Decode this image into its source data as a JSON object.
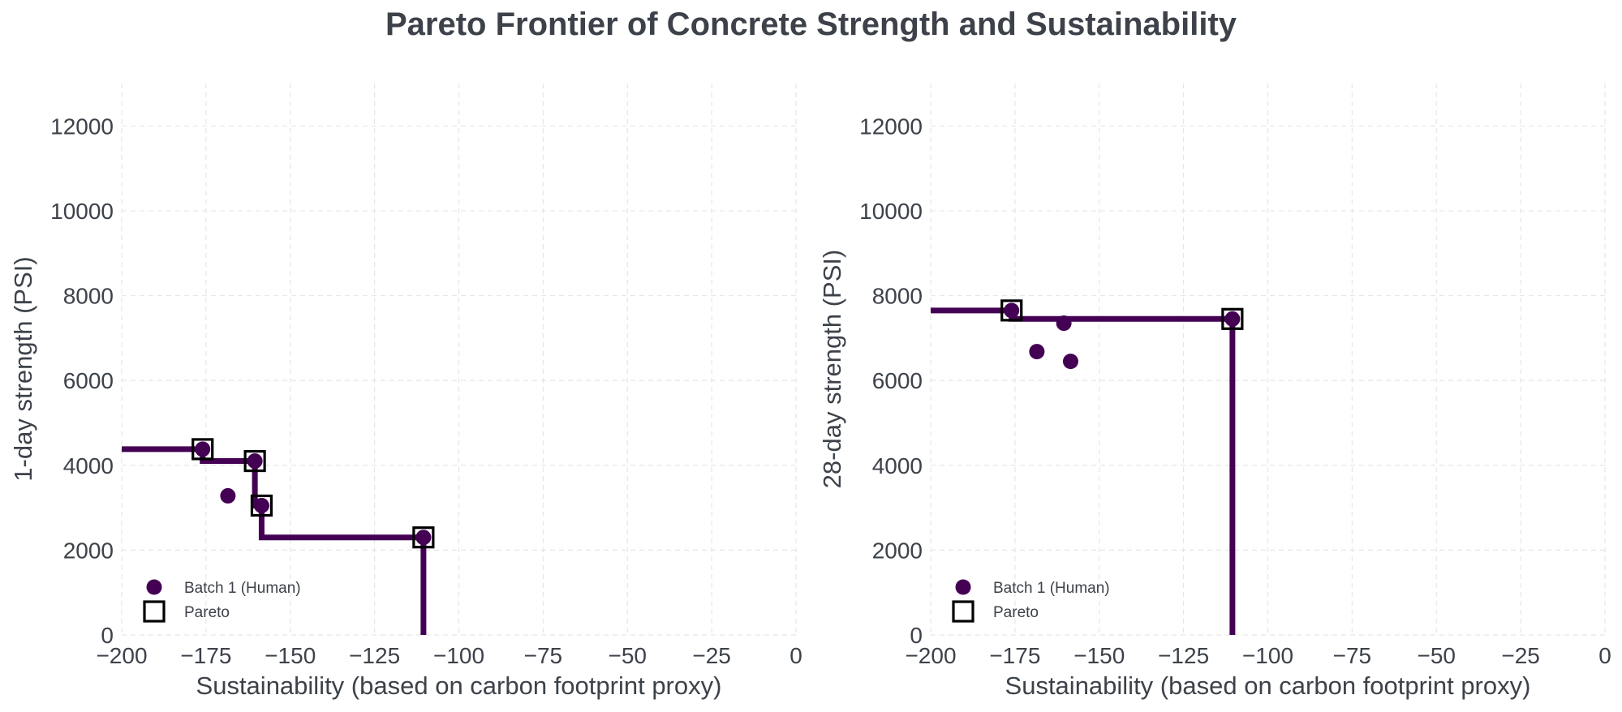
{
  "figure": {
    "title": "Pareto Frontier of Concrete Strength and Sustainability"
  },
  "colors": {
    "series": "#440154",
    "text": "#3d424a",
    "grid": "#e6e6e6",
    "pareto_marker": "#000000"
  },
  "chart_data": [
    {
      "type": "scatter",
      "title": "",
      "xlabel": "Sustainability (based on carbon footprint proxy)",
      "ylabel": "1-day strength (PSI)",
      "xlim": [
        -200,
        0
      ],
      "ylim": [
        0,
        13000
      ],
      "xticks": [
        -200,
        -175,
        -150,
        -125,
        -100,
        -75,
        -50,
        -25,
        0
      ],
      "xtick_labels": [
        "−200",
        "−175",
        "−150",
        "−125",
        "−100",
        "−75",
        "−50",
        "−25",
        "0"
      ],
      "yticks": [
        0,
        2000,
        4000,
        6000,
        8000,
        10000,
        12000
      ],
      "ytick_labels": [
        "0",
        "2000",
        "4000",
        "6000",
        "8000",
        "10000",
        "12000"
      ],
      "grid": true,
      "legend_position": "lower-left",
      "series": [
        {
          "name": "Batch 1 (Human)",
          "kind": "points",
          "color": "#440154",
          "x": [
            -176,
            -168.5,
            -160.5,
            -158.5,
            -110.5
          ],
          "y": [
            4380,
            3280,
            4100,
            3050,
            2300
          ]
        },
        {
          "name": "Pareto",
          "kind": "pareto-markers",
          "color": "#000000",
          "x": [
            -176,
            -160.5,
            -158.5,
            -110.5
          ],
          "y": [
            4380,
            4100,
            3050,
            2300
          ]
        },
        {
          "kind": "frontier-step",
          "color": "#440154",
          "x": [
            -200,
            -176,
            -176,
            -160.5,
            -160.5,
            -158.5,
            -158.5,
            -110.5,
            -110.5
          ],
          "y": [
            4380,
            4380,
            4100,
            4100,
            3050,
            3050,
            2300,
            2300,
            0
          ]
        }
      ]
    },
    {
      "type": "scatter",
      "title": "",
      "xlabel": "Sustainability (based on carbon footprint proxy)",
      "ylabel": "28-day strength (PSI)",
      "xlim": [
        -200,
        0
      ],
      "ylim": [
        0,
        13000
      ],
      "xticks": [
        -200,
        -175,
        -150,
        -125,
        -100,
        -75,
        -50,
        -25,
        0
      ],
      "xtick_labels": [
        "−200",
        "−175",
        "−150",
        "−125",
        "−100",
        "−75",
        "−50",
        "−25",
        "0"
      ],
      "yticks": [
        0,
        2000,
        4000,
        6000,
        8000,
        10000,
        12000
      ],
      "ytick_labels": [
        "0",
        "2000",
        "4000",
        "6000",
        "8000",
        "10000",
        "12000"
      ],
      "grid": true,
      "legend_position": "lower-left",
      "series": [
        {
          "name": "Batch 1 (Human)",
          "kind": "points",
          "color": "#440154",
          "x": [
            -176,
            -168.5,
            -160.5,
            -158.5,
            -110.5
          ],
          "y": [
            7650,
            6680,
            7350,
            6450,
            7450
          ]
        },
        {
          "name": "Pareto",
          "kind": "pareto-markers",
          "color": "#000000",
          "x": [
            -176,
            -110.5
          ],
          "y": [
            7650,
            7450
          ]
        },
        {
          "kind": "frontier-step",
          "color": "#440154",
          "x": [
            -200,
            -176,
            -176,
            -110.5,
            -110.5
          ],
          "y": [
            7650,
            7650,
            7450,
            7450,
            0
          ]
        }
      ]
    }
  ]
}
